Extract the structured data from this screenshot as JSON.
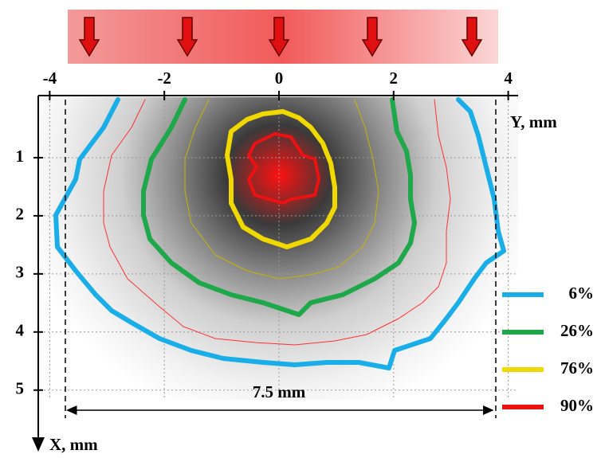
{
  "chart_data": {
    "type": "contour",
    "x_label": "Y, mm",
    "y_label": "X, mm",
    "xlim": [
      -4.2,
      4.2
    ],
    "xticks": [
      -4,
      -2,
      0,
      2,
      4
    ],
    "ylim": [
      0,
      6.1
    ],
    "yticks": [
      1,
      2,
      3,
      4,
      5
    ],
    "grid": true,
    "annotation": "7.5 mm",
    "series": [
      {
        "name": "6%",
        "color": "#1aaee8",
        "values": [
          6
        ]
      },
      {
        "name": "26%",
        "color": "#1fa84a",
        "values": [
          26
        ]
      },
      {
        "name": "76%",
        "color": "#f0d800",
        "values": [
          76
        ]
      },
      {
        "name": "90%",
        "color": "#ee1111",
        "values": [
          90
        ]
      }
    ]
  }
}
